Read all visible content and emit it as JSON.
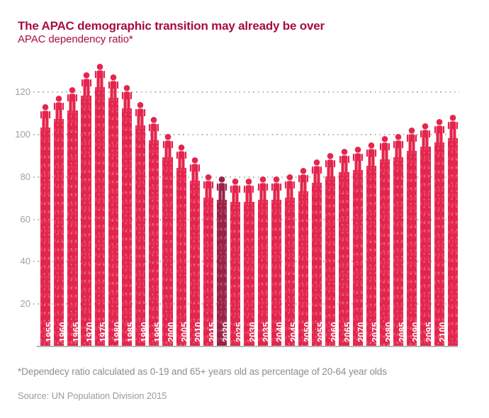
{
  "header": {
    "title": "The APAC demographic transition may already be over",
    "subtitle": "APAC dependency ratio*"
  },
  "footnote": "*Dependecy ratio calculated as 0-19 and 65+ years old as percentage of 20-64 year olds",
  "source": "Source: UN Population Division 2015",
  "colors": {
    "bar": "#e4254e",
    "highlight_bar": "#9c2147",
    "title": "#a60d42",
    "axis_label": "#a0a0a0",
    "gridline": "#b3b3b3",
    "year_label": "#ffffff",
    "axis_line": "#b5b5b5"
  },
  "chart_data": {
    "type": "bar",
    "title": "The APAC demographic transition may already be over",
    "subtitle": "APAC dependency ratio*",
    "categories": [
      "1950",
      "1955",
      "1960",
      "1965",
      "1970",
      "1975",
      "1980",
      "1985",
      "1990",
      "1995",
      "2000",
      "2005",
      "2010",
      "2015",
      "2020",
      "2025",
      "2030",
      "2035",
      "2040",
      "2045",
      "2050",
      "2055",
      "2060",
      "2065",
      "2070",
      "2075",
      "2080",
      "2085",
      "2090",
      "2095",
      "2100"
    ],
    "values": [
      103,
      107,
      111,
      118,
      122,
      117,
      112,
      104,
      97,
      89,
      84,
      78,
      70,
      69,
      68,
      68,
      69,
      69,
      70,
      73,
      77,
      80,
      82,
      83,
      85,
      88,
      89,
      92,
      94,
      96,
      98
    ],
    "highlight_category": "2015",
    "yticks": [
      20,
      40,
      60,
      80,
      100,
      120
    ],
    "ylim": [
      0,
      132
    ],
    "grid": "dotted-horizontal",
    "legend": "none",
    "bar_icon": "person-icon",
    "xlabel": "",
    "ylabel": ""
  }
}
